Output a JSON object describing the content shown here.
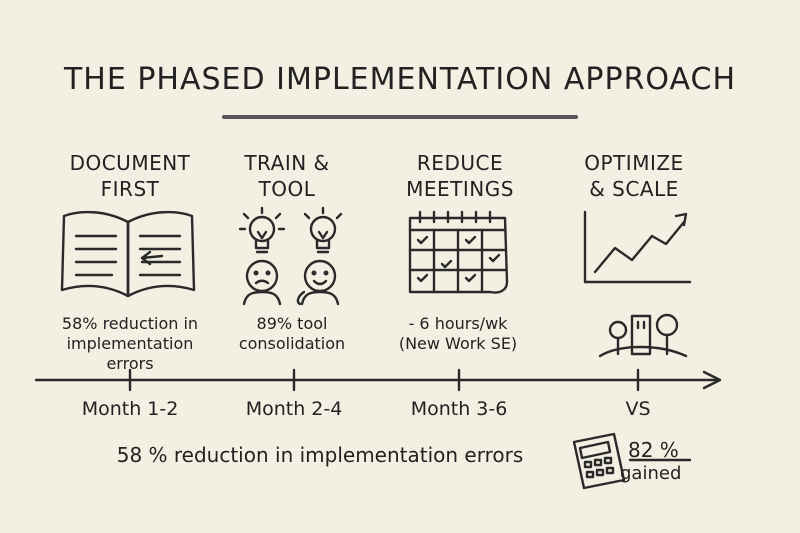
{
  "title": "THE PHASED IMPLEMENTATION APPROACH",
  "phases": [
    {
      "title_line1": "DOCUMENT",
      "title_line2": "FIRST",
      "stat_line1": "58% reduction in",
      "stat_line2": "implementation",
      "stat_line3": "errors",
      "tick": "Month 1-2",
      "icon": "open-book-icon"
    },
    {
      "title_line1": "TRAIN &",
      "title_line2": "TOOL",
      "stat_line1": "89% tool",
      "stat_line2": "consolidation",
      "tick": "Month 2-4",
      "icon": "people-lightbulb-icon"
    },
    {
      "title_line1": "REDUCE",
      "title_line2": "MEETINGS",
      "stat_line1": "- 6 hours/wk",
      "stat_line2": "(New Work SE)",
      "tick": "Month 3-6",
      "icon": "calendar-icon"
    },
    {
      "title_line1": "OPTIMIZE",
      "title_line2": "& SCALE",
      "tick": "VS",
      "icon": "growth-chart-icon"
    }
  ],
  "summary": "58 % reduction in implementation errors",
  "gain": {
    "value": "82 %",
    "label": "gained",
    "icon": "calculator-icon"
  }
}
